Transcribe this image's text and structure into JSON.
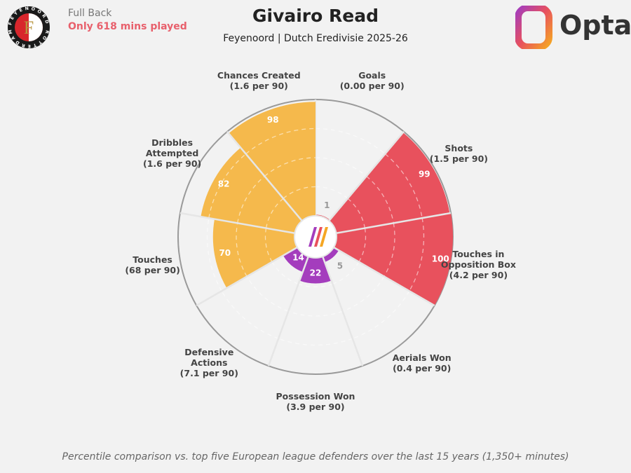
{
  "header": {
    "position": "Full Back",
    "minutes_note": "Only 618 mins played",
    "title": "Givairo Read",
    "subtitle": "Feyenoord | Dutch Eredivisie 2025-26",
    "brand": "Opta",
    "crest_text": "FEYENOORD ROTTERDAM"
  },
  "footer": "Percentile comparison vs. top five European league defenders over the last 15 years (1,350+ minutes)",
  "colors": {
    "attacking": "#e8515d",
    "possession": "#f5b94c",
    "defending": "#a43dbd",
    "background": "#f2f2f2"
  },
  "chart_data": {
    "type": "pie",
    "subtype": "polar-percentile",
    "range": [
      0,
      100
    ],
    "categories": [
      {
        "line1": "Goals",
        "line2": "(0.00 per 90)",
        "value": 1,
        "group": "attacking"
      },
      {
        "line1": "Shots",
        "line2": "(1.5 per 90)",
        "value": 99,
        "group": "attacking"
      },
      {
        "line1": "Touches in",
        "line1b": "Opposition Box",
        "line2": "(4.2 per 90)",
        "value": 100,
        "group": "attacking"
      },
      {
        "line1": "Aerials Won",
        "line2": "(0.4 per 90)",
        "value": 5,
        "group": "defending"
      },
      {
        "line1": "Possession Won",
        "line2": "(3.9 per 90)",
        "value": 22,
        "group": "defending"
      },
      {
        "line1": "Defensive",
        "line1b": "Actions",
        "line2": "(7.1 per 90)",
        "value": 14,
        "group": "defending"
      },
      {
        "line1": "Touches",
        "line2": "(68 per 90)",
        "value": 70,
        "group": "possession"
      },
      {
        "line1": "Dribbles",
        "line1b": "Attempted",
        "line2": "(1.6 per 90)",
        "value": 82,
        "group": "possession"
      },
      {
        "line1": "Chances Created",
        "line2": "(1.6 per 90)",
        "value": 98,
        "group": "possession"
      }
    ]
  }
}
